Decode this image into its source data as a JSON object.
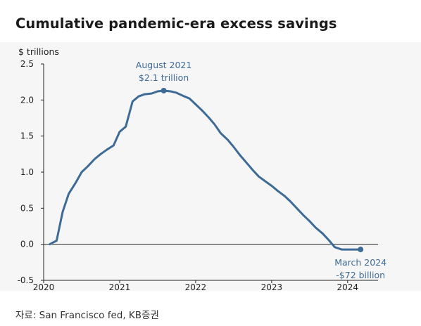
{
  "title": "Cumulative pandemic-era excess savings",
  "source": "자료: San Francisco fed, KB증권",
  "colors": {
    "line": "#3e6b96",
    "annotation": "#3e6b96",
    "axis": "#222222",
    "background": "#f6f6f6"
  },
  "chart_data": {
    "type": "line",
    "title": "Cumulative pandemic-era excess savings",
    "ylabel": "$ trillions",
    "xlabel": "",
    "xlim": [
      2020.0,
      2024.4
    ],
    "ylim": [
      -0.5,
      2.5
    ],
    "xticks": [
      2020,
      2021,
      2022,
      2023,
      2024
    ],
    "xtick_labels": [
      "2020",
      "2021",
      "2022",
      "2023",
      "2024"
    ],
    "yticks": [
      2.5,
      2.0,
      1.5,
      1.0,
      0.5,
      0.0,
      -0.5
    ],
    "ytick_labels": [
      "2.5",
      "2.0",
      "1.5",
      "1.0",
      "0.5",
      "0.0",
      "-0.5"
    ],
    "grid": false,
    "legend": "none",
    "series": [
      {
        "x": [
          2020.08,
          2020.17,
          2020.25,
          2020.33,
          2020.42,
          2020.5,
          2020.58,
          2020.67,
          2020.75,
          2020.83,
          2020.92,
          2021.0,
          2021.08,
          2021.17,
          2021.25,
          2021.33,
          2021.42,
          2021.5,
          2021.58,
          2021.67,
          2021.75,
          2021.83,
          2021.92,
          2022.0,
          2022.08,
          2022.17,
          2022.25,
          2022.33,
          2022.42,
          2022.5,
          2022.58,
          2022.67,
          2022.75,
          2022.83,
          2022.92,
          2023.0,
          2023.08,
          2023.17,
          2023.25,
          2023.33,
          2023.42,
          2023.5,
          2023.58,
          2023.67,
          2023.75,
          2023.83,
          2023.92,
          2024.0,
          2024.08,
          2024.17
        ],
        "y": [
          0.0,
          0.05,
          0.45,
          0.7,
          0.85,
          1.0,
          1.08,
          1.18,
          1.25,
          1.31,
          1.37,
          1.56,
          1.63,
          1.98,
          2.05,
          2.08,
          2.09,
          2.12,
          2.13,
          2.12,
          2.1,
          2.06,
          2.02,
          1.94,
          1.86,
          1.76,
          1.66,
          1.54,
          1.45,
          1.35,
          1.24,
          1.13,
          1.03,
          0.94,
          0.87,
          0.81,
          0.74,
          0.67,
          0.59,
          0.5,
          0.4,
          0.32,
          0.23,
          0.15,
          0.06,
          -0.04,
          -0.072,
          -0.072,
          -0.072,
          -0.072
        ]
      }
    ],
    "annotations": [
      {
        "x": 2021.58,
        "y": 2.13,
        "lines": [
          "August 2021",
          "$2.1 trillion"
        ],
        "position": "above"
      },
      {
        "x": 2024.17,
        "y": -0.072,
        "lines": [
          "March 2024",
          "-$72 billion"
        ],
        "position": "below"
      }
    ]
  }
}
